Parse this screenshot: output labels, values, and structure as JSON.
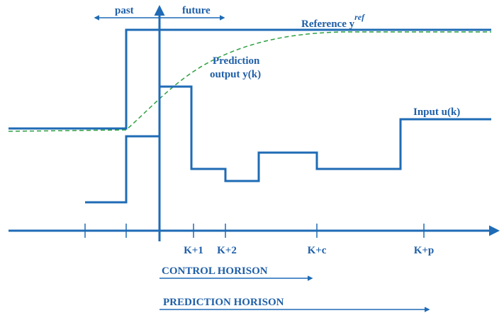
{
  "labels": {
    "past": "past",
    "future": "future",
    "reference": "Reference y",
    "reference_sup": "ref",
    "prediction_1": "Prediction",
    "prediction_2": "output y(k)",
    "input": "Input u(k)"
  },
  "ticks": [
    "K+1",
    "K+2",
    "K+c",
    "K+p"
  ],
  "horizons": {
    "control": "CONTROL HORISON",
    "prediction": "PREDICTION HORISON"
  }
}
